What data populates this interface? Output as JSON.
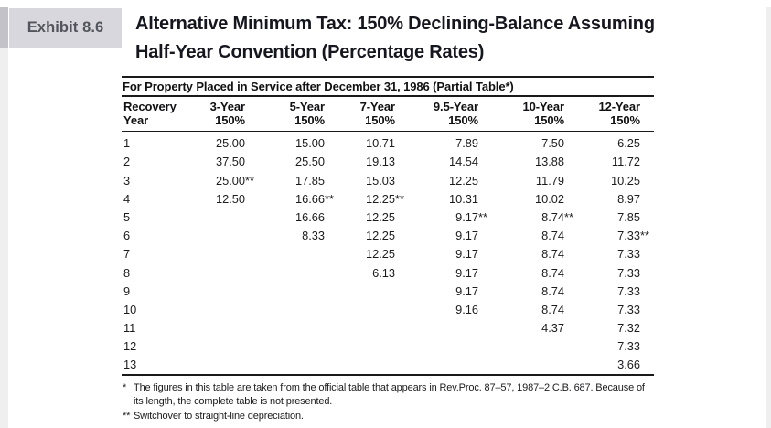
{
  "exhibit": {
    "label": "Exhibit 8.6"
  },
  "title": {
    "line1": "Alternative Minimum Tax: 150% Declining-Balance Assuming",
    "line2": "Half-Year Convention (Percentage Rates)"
  },
  "table": {
    "subtitle": "For Property Placed in Service after December 31, 1986 (Partial Table*)",
    "columns": [
      {
        "line1": "Recovery",
        "line2": "Year"
      },
      {
        "line1": "3-Year",
        "line2": "150%"
      },
      {
        "line1": "5-Year",
        "line2": "150%"
      },
      {
        "line1": "7-Year",
        "line2": "150%"
      },
      {
        "line1": "9.5-Year",
        "line2": "150%"
      },
      {
        "line1": "10-Year",
        "line2": "150%"
      },
      {
        "line1": "12-Year",
        "line2": "150%"
      }
    ],
    "rows": [
      {
        "year": "1",
        "values": [
          "25.00",
          "15.00",
          "10.71",
          "7.89",
          "7.50",
          "6.25"
        ]
      },
      {
        "year": "2",
        "values": [
          "37.50",
          "25.50",
          "19.13",
          "14.54",
          "13.88",
          "11.72"
        ]
      },
      {
        "year": "3",
        "values": [
          "25.00**",
          "17.85",
          "15.03",
          "12.25",
          "11.79",
          "10.25"
        ]
      },
      {
        "year": "4",
        "values": [
          "12.50",
          "16.66**",
          "12.25**",
          "10.31",
          "10.02",
          "8.97"
        ]
      },
      {
        "year": "5",
        "values": [
          "",
          "16.66",
          "12.25",
          "9.17**",
          "8.74**",
          "7.85"
        ]
      },
      {
        "year": "6",
        "values": [
          "",
          "8.33",
          "12.25",
          "9.17",
          "8.74",
          "7.33**"
        ]
      },
      {
        "year": "7",
        "values": [
          "",
          "",
          "12.25",
          "9.17",
          "8.74",
          "7.33"
        ]
      },
      {
        "year": "8",
        "values": [
          "",
          "",
          "6.13",
          "9.17",
          "8.74",
          "7.33"
        ]
      },
      {
        "year": "9",
        "values": [
          "",
          "",
          "",
          "9.17",
          "8.74",
          "7.33"
        ]
      },
      {
        "year": "10",
        "values": [
          "",
          "",
          "",
          "9.16",
          "8.74",
          "7.33"
        ]
      },
      {
        "year": "11",
        "values": [
          "",
          "",
          "",
          "",
          "4.37",
          "7.32"
        ]
      },
      {
        "year": "12",
        "values": [
          "",
          "",
          "",
          "",
          "",
          "7.33"
        ]
      },
      {
        "year": "13",
        "values": [
          "",
          "",
          "",
          "",
          "",
          "3.66"
        ]
      }
    ]
  },
  "footnotes": [
    {
      "marker": "*",
      "text": "The figures in this table are taken from the official table that appears in Rev.Proc. 87–57, 1987–2 C.B. 687. Because of its length, the complete table is not presented."
    },
    {
      "marker": "**",
      "text": "Switchover to straight-line depreciation."
    }
  ],
  "colors": {
    "exhibit_box_bg": "#d7d7dd",
    "exhibit_text": "#54545c",
    "title_text": "#16161f",
    "rule": "#1a1a1a",
    "body_text": "#1c1c1e",
    "page_edge_light": "#efeff0",
    "page_edge_dark": "#c3c3c7",
    "background": "#ffffff"
  }
}
